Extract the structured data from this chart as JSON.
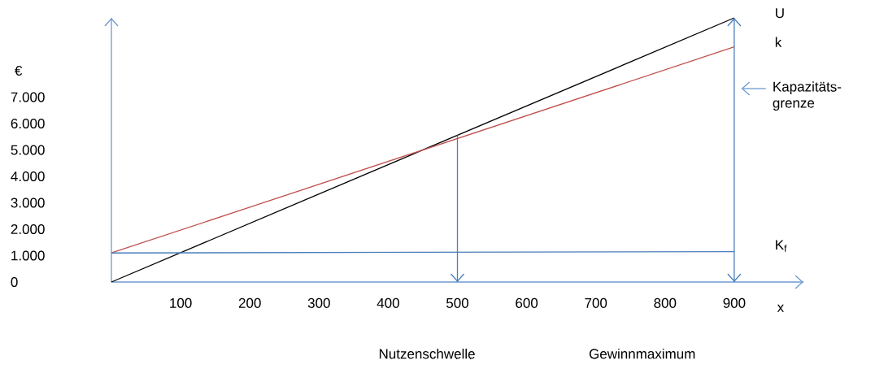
{
  "chart_data": {
    "type": "line",
    "xlabel": "x",
    "ylabel": "€",
    "x": [
      0,
      900
    ],
    "series": [
      {
        "name": "U",
        "color": "#000000",
        "values": [
          0,
          10000
        ]
      },
      {
        "name": "k",
        "color": "#c0504d",
        "values": [
          1100,
          8900
        ]
      },
      {
        "name": "K$_{f}$",
        "color": "#4a7ebb",
        "values": [
          1100,
          1150
        ]
      }
    ],
    "xlim": [
      0,
      1000
    ],
    "ylim": [
      0,
      10000
    ],
    "xticks": [
      100,
      200,
      300,
      400,
      500,
      600,
      700,
      800,
      900
    ],
    "yticks": [
      0,
      {
        "value": 1000,
        "label": "1.000"
      },
      {
        "value": 2000,
        "label": "2.000"
      },
      {
        "value": 3000,
        "label": "3.000"
      },
      {
        "value": 4000,
        "label": "4.000"
      },
      {
        "value": 5000,
        "label": "5.000"
      },
      {
        "value": 6000,
        "label": "6.000"
      },
      {
        "value": 7000,
        "label": "7.000"
      }
    ],
    "ref_lines": [
      {
        "axis": "x",
        "value": 500,
        "color": "#4a7ebb"
      },
      {
        "axis": "x",
        "value": 900,
        "color": "#4a7ebb"
      }
    ],
    "annotations": [
      "Kapazitäts-grenze",
      "Nutzenschwelle",
      "Gewinnmaximum"
    ],
    "legend": false,
    "grid": false,
    "marker": "none",
    "line_style": "solid"
  }
}
